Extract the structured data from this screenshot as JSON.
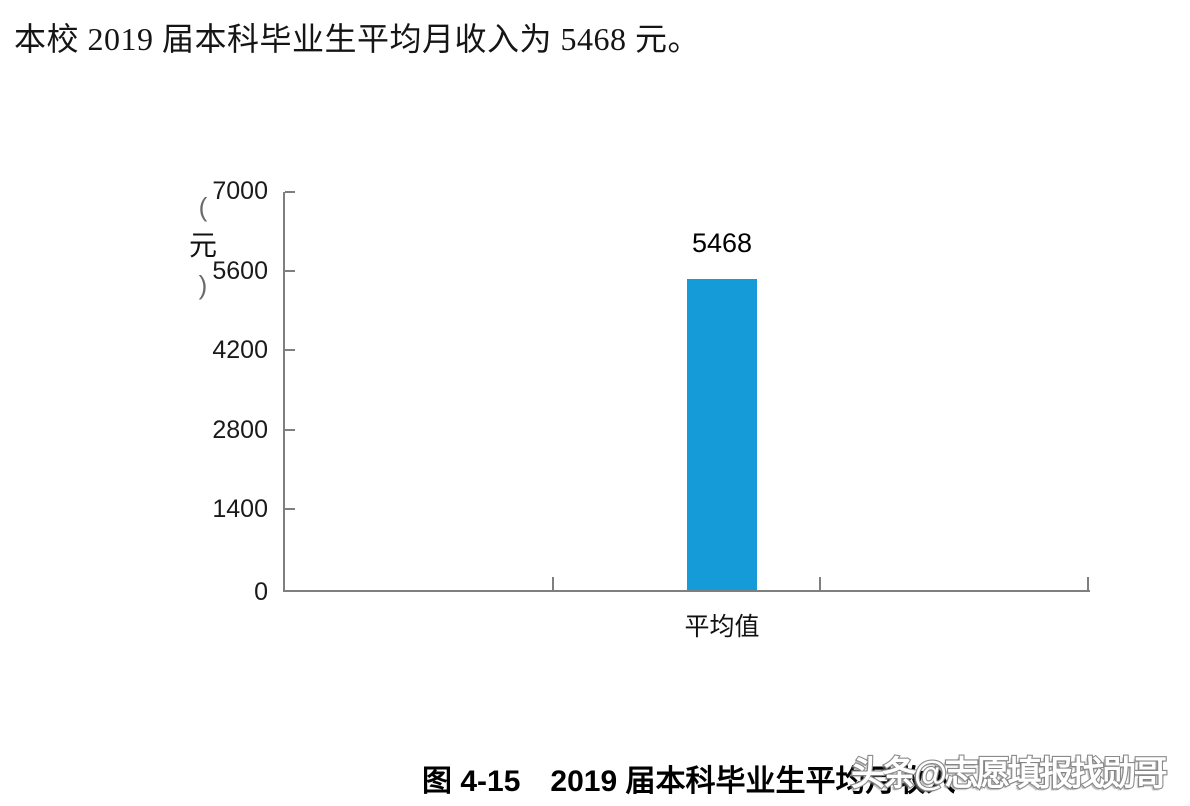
{
  "header": {
    "text": "本校 2019 届本科毕业生平均月收入为 5468 元。"
  },
  "chart_data": {
    "type": "bar",
    "categories": [
      "平均值"
    ],
    "values": [
      5468
    ],
    "bar_labels": [
      "5468"
    ],
    "title": "",
    "xlabel": "",
    "ylabel": "（元）",
    "ylabel_vertical_parts": [
      "(",
      "元",
      ")"
    ],
    "yticks": [
      "7000",
      "5600",
      "4200",
      "2800",
      "1400",
      "0"
    ],
    "ylim": [
      0,
      7000
    ],
    "grid": false,
    "legend": "none",
    "bar_color": "#149bd8",
    "axis_color": "#7f7f7f"
  },
  "caption": {
    "figure_label": "图 4-15",
    "title": "2019 届本科毕业生平均月收入"
  },
  "watermark": {
    "text": "头条@志愿填报找勋哥",
    "fill": "#ffffff",
    "outline": "#8a8a8a"
  }
}
